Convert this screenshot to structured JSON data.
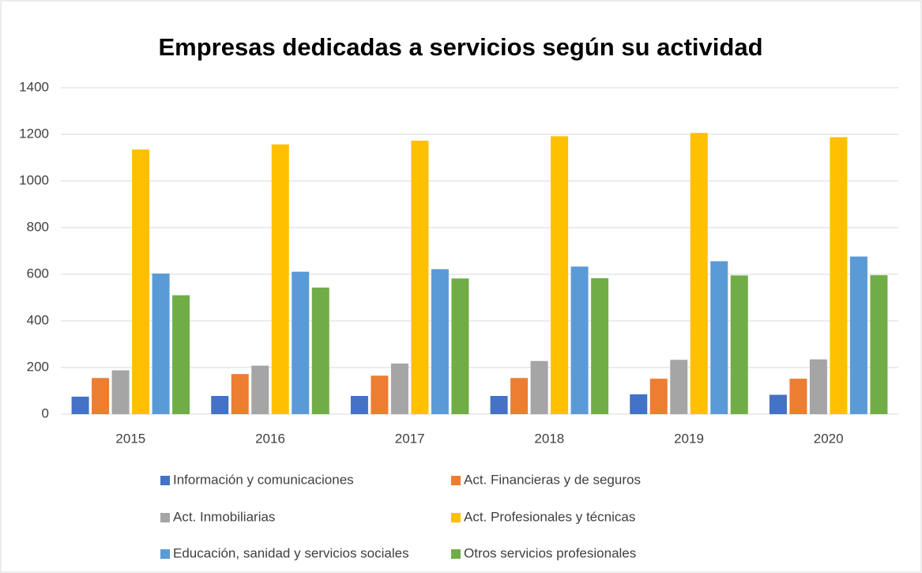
{
  "chart_data": {
    "type": "bar",
    "title": "Empresas dedicadas a servicios según su actividad",
    "categories": [
      "2015",
      "2016",
      "2017",
      "2018",
      "2019",
      "2020"
    ],
    "series": [
      {
        "name": "Información y comunicaciones",
        "color": "#4472c4",
        "values": [
          75,
          78,
          78,
          78,
          85,
          83
        ]
      },
      {
        "name": "Act. Financieras y de seguros",
        "color": "#ed7d31",
        "values": [
          155,
          172,
          165,
          155,
          152,
          152
        ]
      },
      {
        "name": "Act. Inmobiliarias",
        "color": "#a5a5a5",
        "values": [
          188,
          208,
          217,
          228,
          233,
          235
        ]
      },
      {
        "name": "Act. Profesionales y técnicas",
        "color": "#ffc000",
        "values": [
          1135,
          1157,
          1173,
          1192,
          1206,
          1188
        ]
      },
      {
        "name": "Educación, sanidad y servicios sociales",
        "color": "#5b9bd5",
        "values": [
          603,
          611,
          622,
          633,
          656,
          676
        ]
      },
      {
        "name": "Otros servicios profesionales",
        "color": "#70ad47",
        "values": [
          510,
          543,
          582,
          583,
          595,
          596
        ]
      }
    ],
    "ylim": [
      0,
      1400
    ],
    "yticks": [
      0,
      200,
      400,
      600,
      800,
      1000,
      1200,
      1400
    ],
    "grid": true
  }
}
